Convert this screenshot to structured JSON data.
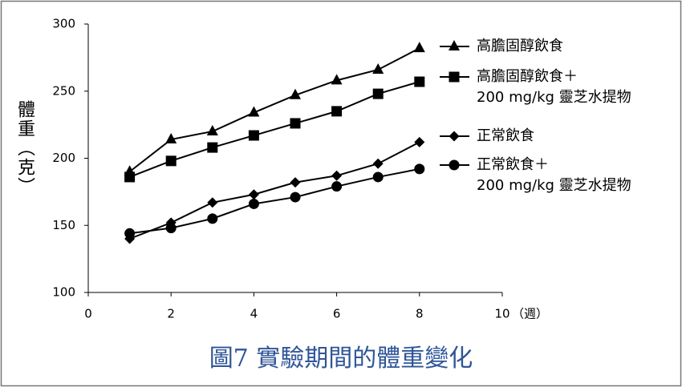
{
  "chart_data": {
    "type": "line",
    "title": "圖7  實驗期間的體重變化",
    "y_label": "體重（克）",
    "x_label": "（週）",
    "x": [
      1,
      2,
      3,
      4,
      5,
      6,
      7,
      8
    ],
    "xlim": [
      0,
      10
    ],
    "xticks": [
      0,
      2,
      4,
      6,
      8,
      10
    ],
    "ylim": [
      100,
      300
    ],
    "yticks": [
      100,
      150,
      200,
      250,
      300
    ],
    "legend": "right",
    "series": [
      {
        "name": "高膽固醇飲食",
        "marker": "triangle",
        "color": "#000000",
        "values": [
          190,
          214,
          220,
          234,
          247,
          258,
          266,
          282
        ]
      },
      {
        "name": "高膽固醇飲食＋\n200 mg/kg 靈芝水提物",
        "marker": "square",
        "color": "#000000",
        "values": [
          186,
          198,
          208,
          217,
          226,
          235,
          248,
          257
        ]
      },
      {
        "name": "正常飲食",
        "marker": "diamond",
        "color": "#000000",
        "values": [
          140,
          152,
          167,
          173,
          182,
          187,
          196,
          212
        ]
      },
      {
        "name": "正常飲食＋\n200 mg/kg 靈芝水提物",
        "marker": "circle",
        "color": "#000000",
        "values": [
          144,
          148,
          155,
          166,
          171,
          179,
          186,
          192
        ]
      }
    ]
  }
}
